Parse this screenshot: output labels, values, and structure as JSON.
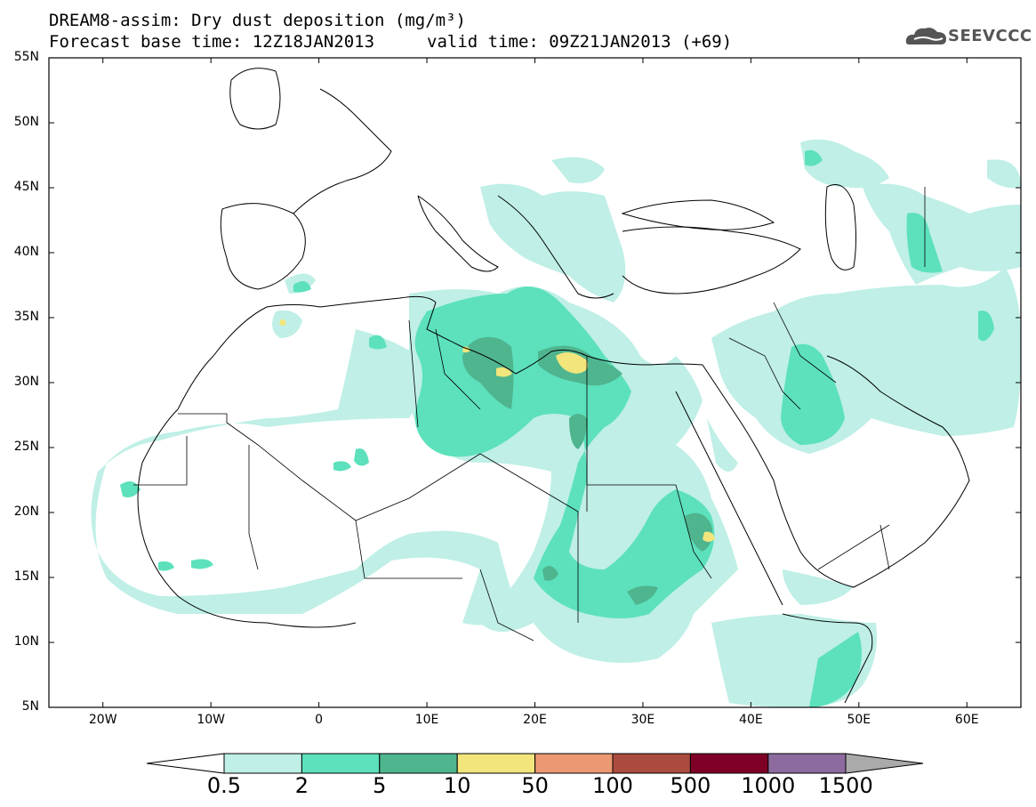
{
  "header": {
    "title_line1": "DREAM8-assim: Dry dust deposition (mg/m³)",
    "title_line2": "Forecast base time: 12Z18JAN2013",
    "valid_time": "valid time: 09Z21JAN2013 (+69)",
    "logo_text": "SEEVCCC"
  },
  "axes": {
    "lat_labels": [
      "55N",
      "50N",
      "45N",
      "40N",
      "35N",
      "30N",
      "25N",
      "20N",
      "15N",
      "10N",
      "5N"
    ],
    "lon_labels": [
      "20W",
      "10W",
      "0",
      "10E",
      "20E",
      "30E",
      "40E",
      "50E",
      "60E"
    ]
  },
  "legend": {
    "levels": [
      "0.5",
      "2",
      "5",
      "10",
      "50",
      "100",
      "500",
      "1000",
      "1500"
    ],
    "colors": [
      "#bfefe6",
      "#5ce1bc",
      "#4fb58f",
      "#f1e57c",
      "#ec9872",
      "#ab4b3f",
      "#7f0026",
      "#8d6b9e",
      "#aaaaaa"
    ]
  },
  "map_colors": {
    "light": "#bfefe6",
    "mid": "#5ce1bc",
    "dark": "#4fb58f",
    "yellow": "#f1e57c"
  }
}
